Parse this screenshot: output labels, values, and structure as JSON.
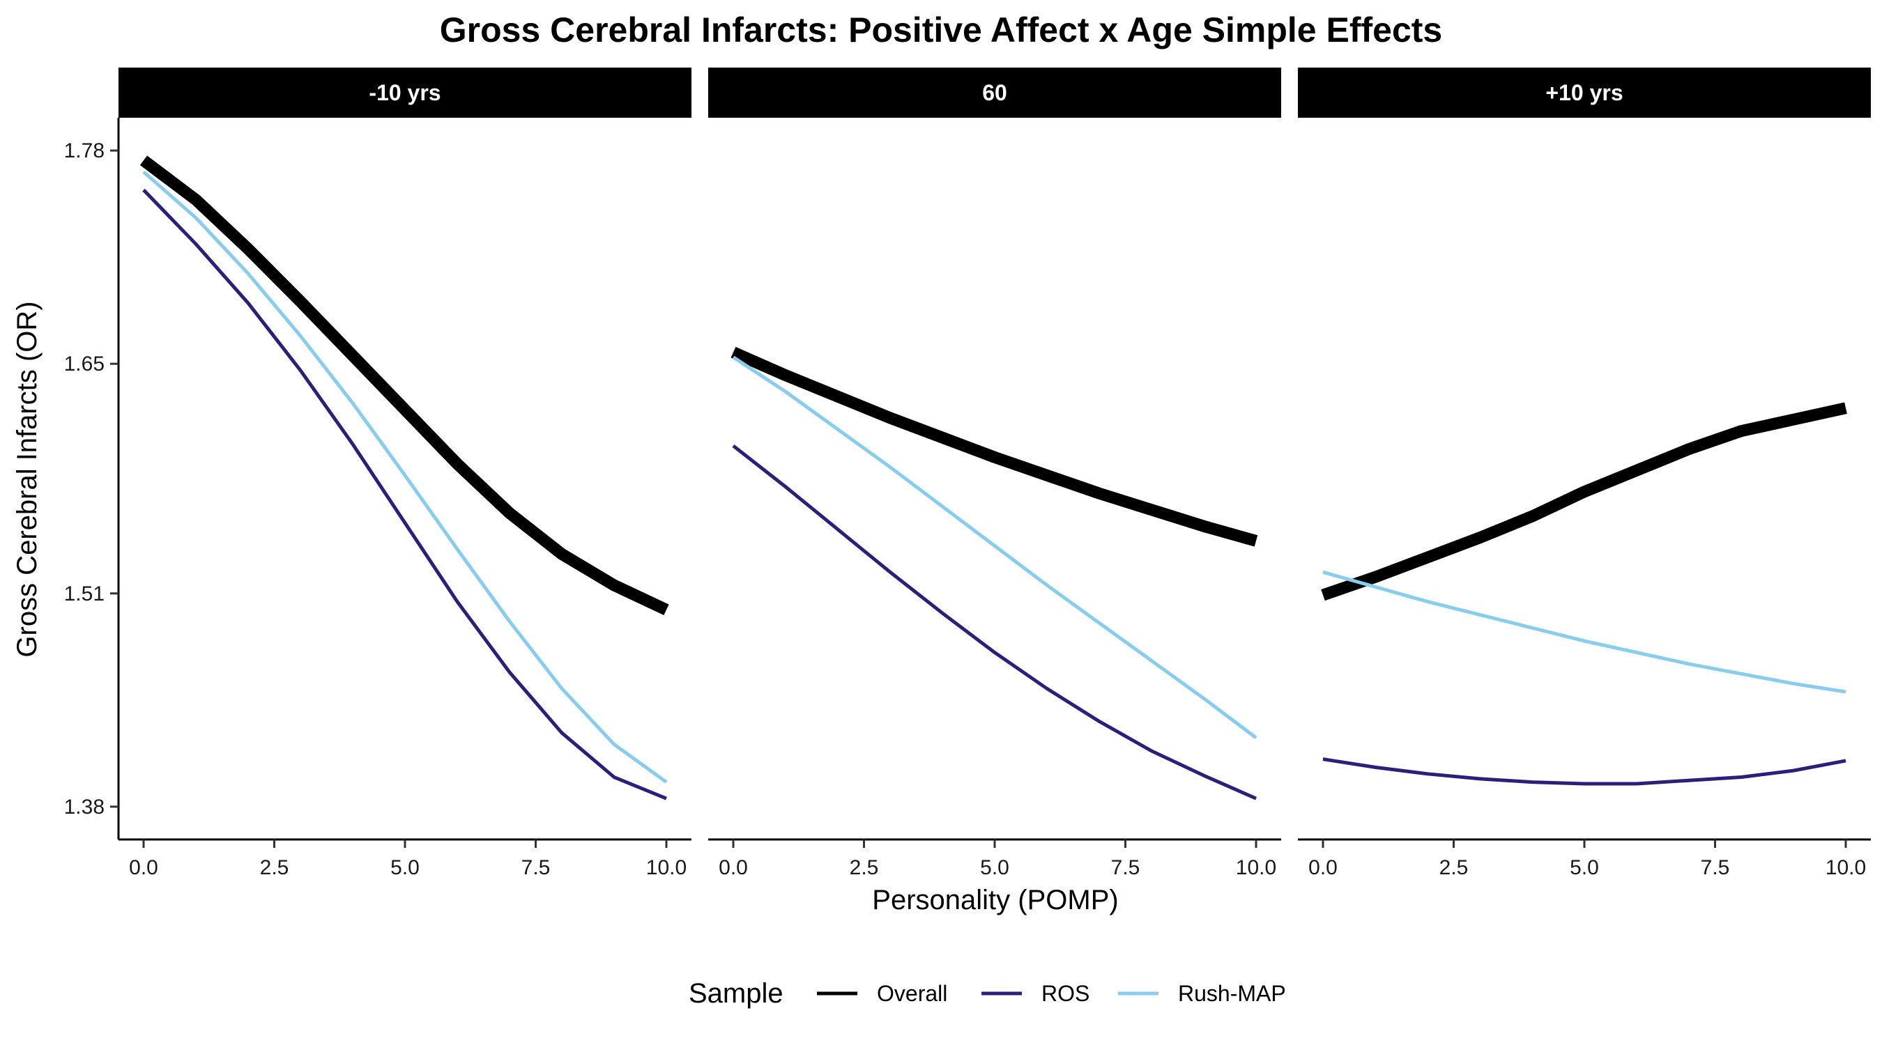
{
  "chart_data": {
    "type": "line",
    "title": "Gross Cerebral Infarcts: Positive Affect x Age Simple Effects",
    "xlabel": "Personality (POMP)",
    "ylabel": "Gross Cerebral Infarcts (OR)",
    "xlim": [
      0,
      10
    ],
    "ylim": [
      1.36,
      1.8
    ],
    "x_ticks": [
      "0.0",
      "2.5",
      "5.0",
      "7.5",
      "10.0"
    ],
    "x_tick_values": [
      0,
      2.5,
      5,
      7.5,
      10
    ],
    "y_ticks": [
      "1.38",
      "1.51",
      "1.65",
      "1.78"
    ],
    "y_tick_values": [
      1.38,
      1.51,
      1.65,
      1.78
    ],
    "grid": false,
    "legend": {
      "title": "Sample",
      "position": "bottom",
      "entries": [
        "Overall",
        "ROS",
        "Rush-MAP"
      ]
    },
    "x": [
      0,
      1,
      2,
      3,
      4,
      5,
      6,
      7,
      8,
      9,
      10
    ],
    "panels": [
      {
        "label": "-10 yrs",
        "series": [
          {
            "name": "Overall",
            "color": "#000000",
            "values": [
              1.774,
              1.75,
              1.72,
              1.688,
              1.655,
              1.622,
              1.589,
              1.559,
              1.534,
              1.515,
              1.5
            ]
          },
          {
            "name": "ROS",
            "color": "#2d1e7a",
            "values": [
              1.756,
              1.723,
              1.687,
              1.646,
              1.601,
              1.553,
              1.505,
              1.462,
              1.425,
              1.398,
              1.385
            ]
          },
          {
            "name": "Rush-MAP",
            "color": "#88ccee",
            "values": [
              1.767,
              1.739,
              1.705,
              1.667,
              1.626,
              1.582,
              1.537,
              1.493,
              1.452,
              1.418,
              1.395
            ]
          }
        ]
      },
      {
        "label": "60",
        "series": [
          {
            "name": "Overall",
            "color": "#000000",
            "values": [
              1.657,
              1.643,
              1.63,
              1.617,
              1.605,
              1.593,
              1.582,
              1.571,
              1.561,
              1.551,
              1.542
            ]
          },
          {
            "name": "ROS",
            "color": "#2d1e7a",
            "values": [
              1.6,
              1.575,
              1.549,
              1.523,
              1.498,
              1.474,
              1.452,
              1.432,
              1.414,
              1.399,
              1.385
            ]
          },
          {
            "name": "Rush-MAP",
            "color": "#88ccee",
            "values": [
              1.654,
              1.633,
              1.61,
              1.587,
              1.563,
              1.539,
              1.515,
              1.492,
              1.469,
              1.446,
              1.422
            ]
          }
        ]
      },
      {
        "label": "+10 yrs",
        "series": [
          {
            "name": "Overall",
            "color": "#000000",
            "values": [
              1.509,
              1.52,
              1.532,
              1.544,
              1.557,
              1.572,
              1.585,
              1.598,
              1.609,
              1.616,
              1.623
            ]
          },
          {
            "name": "ROS",
            "color": "#2d1e7a",
            "values": [
              1.409,
              1.404,
              1.4,
              1.397,
              1.395,
              1.394,
              1.394,
              1.396,
              1.398,
              1.402,
              1.408
            ]
          },
          {
            "name": "Rush-MAP",
            "color": "#88ccee",
            "values": [
              1.523,
              1.514,
              1.505,
              1.497,
              1.489,
              1.481,
              1.474,
              1.467,
              1.461,
              1.455,
              1.45
            ]
          }
        ]
      }
    ]
  }
}
